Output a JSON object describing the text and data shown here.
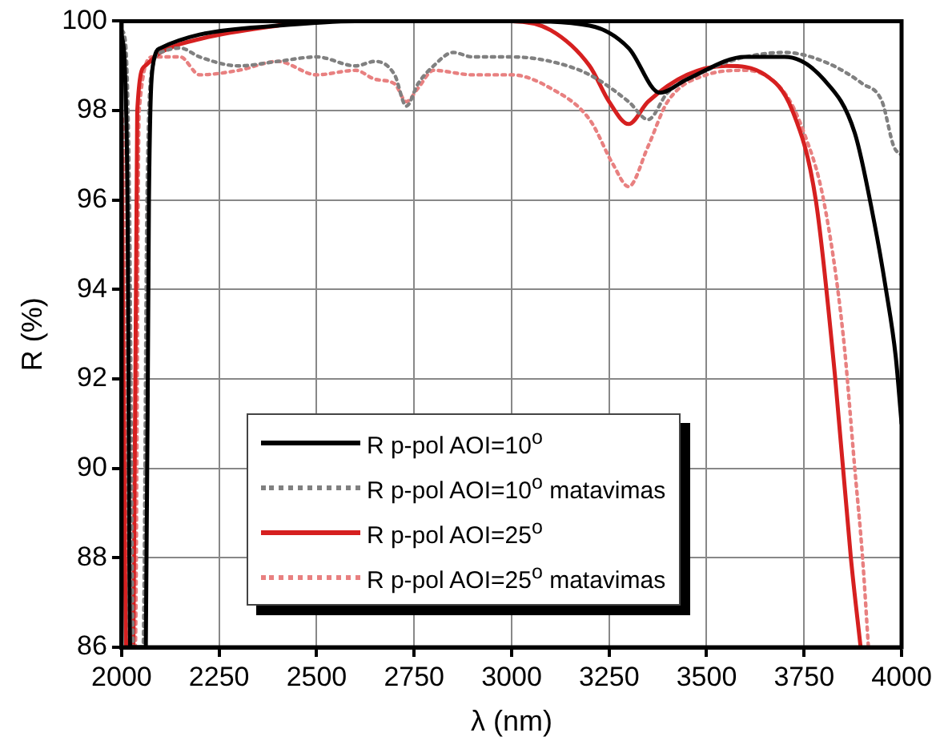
{
  "chart_data": {
    "type": "line",
    "xlabel": "λ (nm)",
    "ylabel": "R (%)",
    "xlim": [
      2000,
      4000
    ],
    "xticks": [
      2000,
      2250,
      2500,
      2750,
      3000,
      3250,
      3500,
      3750,
      4000
    ],
    "ylim": [
      86,
      100
    ],
    "yticks": [
      86,
      88,
      90,
      92,
      94,
      96,
      98,
      100
    ],
    "grid": true,
    "legend": "bottom",
    "marker": "none",
    "series": [
      {
        "name": "R p-pol AOI=10$^{o}$",
        "color": "#000000",
        "line_style": "solid",
        "x": [
          2000,
          2008,
          2015,
          2022,
          2062,
          2070,
          2080,
          2100,
          2200,
          2400,
          2600,
          3000,
          3200,
          3300,
          3380,
          3450,
          3600,
          3700,
          3800,
          3880,
          3930,
          3960,
          3985,
          4000
        ],
        "values": [
          99.7,
          99,
          96,
          86,
          86,
          96,
          99,
          99.4,
          99.7,
          99.9,
          100,
          100,
          99.9,
          99.4,
          98.4,
          98.7,
          99.2,
          99.2,
          98.7,
          97.5,
          95.5,
          94,
          92.5,
          91
        ]
      },
      {
        "name": "R p-pol AOI=10$^{o}$ matavimas",
        "color": "#808080",
        "line_style": "dotted",
        "x": [
          2000,
          2010,
          2020,
          2030,
          2055,
          2065,
          2080,
          2100,
          2150,
          2200,
          2300,
          2400,
          2500,
          2600,
          2650,
          2700,
          2730,
          2760,
          2800,
          2850,
          2900,
          3000,
          3100,
          3200,
          3300,
          3350,
          3400,
          3500,
          3600,
          3700,
          3800,
          3900,
          3950,
          3980,
          4000
        ],
        "values": [
          99.8,
          99.5,
          96,
          86,
          86,
          96,
          99,
          99.3,
          99.4,
          99.2,
          99,
          99.1,
          99.2,
          99,
          99.1,
          98.8,
          98.1,
          98.6,
          99,
          99.3,
          99.2,
          99.2,
          99.1,
          98.8,
          98.2,
          97.8,
          98.4,
          98.9,
          99.2,
          99.3,
          99.1,
          98.6,
          98.2,
          97.2,
          97
        ]
      },
      {
        "name": "R p-pol AOI=25$^{o}$",
        "color": "#d62020",
        "line_style": "solid",
        "x": [
          2000,
          2005,
          2012,
          2030,
          2040,
          2060,
          2100,
          2200,
          2400,
          2500,
          3000,
          3100,
          3200,
          3250,
          3300,
          3350,
          3450,
          3550,
          3650,
          3720,
          3780,
          3830,
          3870,
          3895
        ],
        "values": [
          97,
          92,
          86,
          86,
          98,
          99,
          99.3,
          99.6,
          99.9,
          100,
          100,
          99.8,
          99,
          98.2,
          97.7,
          98.2,
          98.8,
          99,
          98.8,
          98,
          96,
          92,
          88,
          86
        ]
      },
      {
        "name": "R p-pol AOI=25$^{o}$ matavimas",
        "color": "#e88080",
        "line_style": "dotted",
        "x": [
          2000,
          2008,
          2012,
          2035,
          2045,
          2080,
          2150,
          2200,
          2300,
          2400,
          2500,
          2600,
          2650,
          2700,
          2730,
          2760,
          2800,
          2900,
          3000,
          3100,
          3200,
          3260,
          3300,
          3350,
          3400,
          3500,
          3600,
          3700,
          3750,
          3800,
          3850,
          3880,
          3900,
          3915
        ],
        "values": [
          98,
          96,
          86,
          86,
          98,
          99.2,
          99.2,
          98.8,
          98.9,
          99.1,
          98.8,
          98.9,
          98.7,
          98.6,
          98.2,
          98.5,
          98.9,
          98.8,
          98.8,
          98.5,
          97.8,
          96.8,
          96.3,
          97.2,
          98.2,
          98.8,
          98.9,
          98.4,
          97.5,
          96,
          93,
          90,
          88,
          86
        ]
      }
    ]
  }
}
